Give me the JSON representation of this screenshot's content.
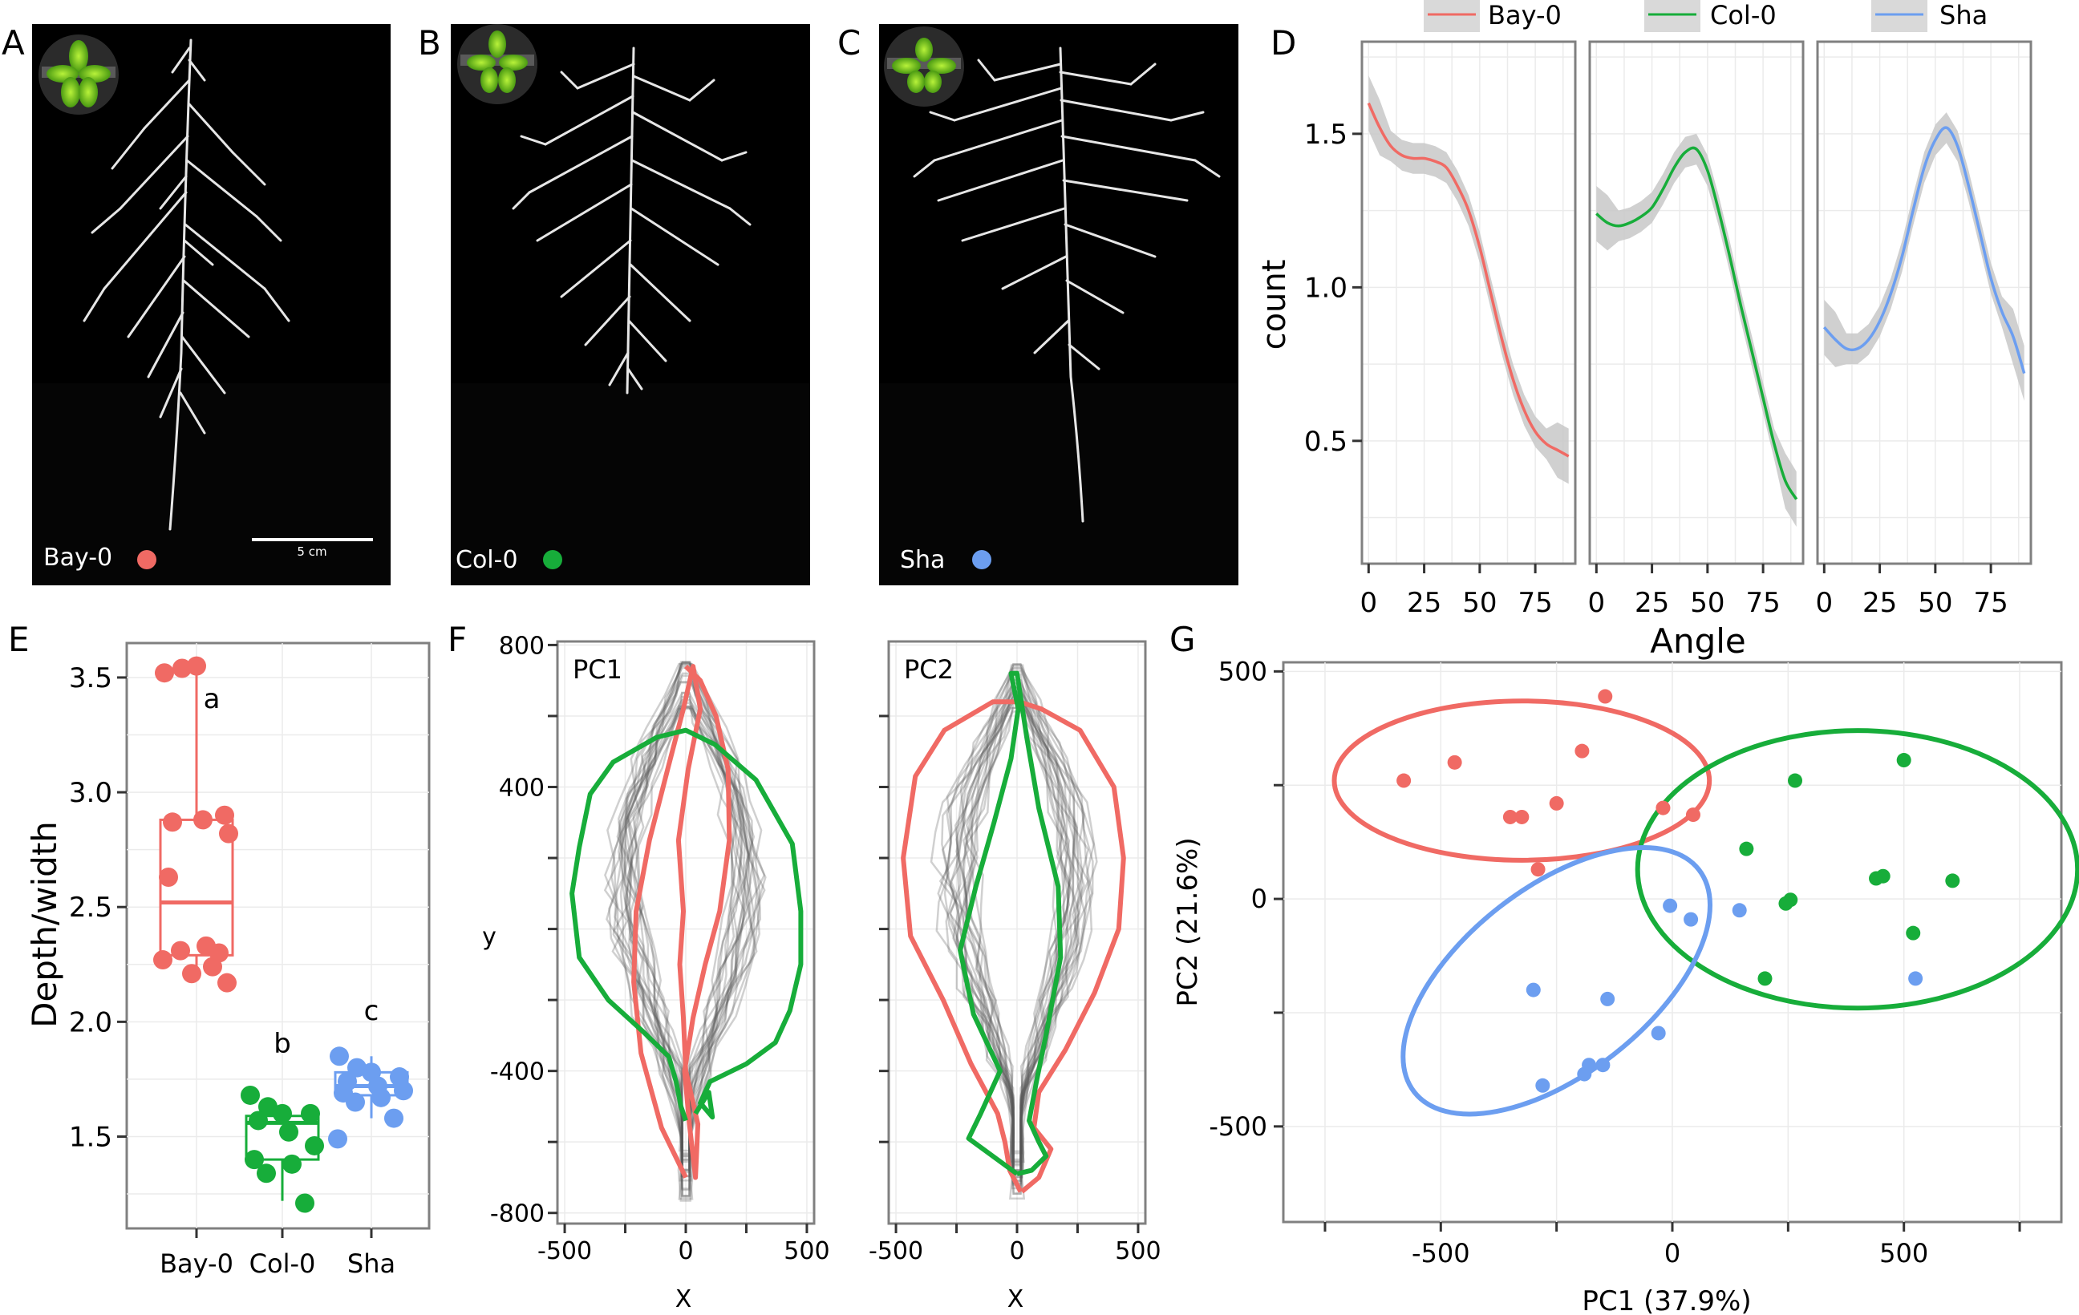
{
  "panel_labels": [
    "A",
    "B",
    "C",
    "D",
    "E",
    "F",
    "G"
  ],
  "colors": {
    "bay": "#f06a64",
    "col": "#17ad3a",
    "sha": "#6c9ef0",
    "ghost": "#555555",
    "frame": "#808080",
    "grid": "#ebebeb"
  },
  "photos": {
    "accession_labels": [
      "Bay-0",
      "Col-0",
      "Sha"
    ],
    "scale_bar": "5 cm"
  },
  "chart_data": [
    {
      "panel": "D",
      "type": "line",
      "facets": [
        "Bay-0",
        "Col-0",
        "Sha"
      ],
      "xlabel": "Angle",
      "ylabel": "count",
      "xlim": [
        -3,
        93
      ],
      "ylim": [
        0.1,
        1.8
      ],
      "xticks": [
        0,
        25,
        50,
        75
      ],
      "yticks": [
        0.5,
        1.0,
        1.5
      ],
      "ytick_labels": [
        "0.5",
        "1.0",
        "1.5"
      ],
      "legend_position": "top",
      "series": [
        {
          "name": "Bay-0",
          "x": [
            0,
            5,
            10,
            15,
            20,
            25,
            30,
            35,
            40,
            45,
            50,
            55,
            60,
            65,
            70,
            75,
            80,
            85,
            90
          ],
          "y": [
            1.6,
            1.52,
            1.46,
            1.43,
            1.42,
            1.42,
            1.41,
            1.39,
            1.33,
            1.25,
            1.13,
            0.98,
            0.83,
            0.7,
            0.6,
            0.53,
            0.49,
            0.47,
            0.45
          ]
        },
        {
          "name": "Col-0",
          "x": [
            0,
            5,
            10,
            15,
            20,
            25,
            30,
            35,
            40,
            45,
            50,
            55,
            60,
            65,
            70,
            75,
            80,
            85,
            90
          ],
          "y": [
            1.24,
            1.21,
            1.2,
            1.21,
            1.23,
            1.26,
            1.32,
            1.39,
            1.44,
            1.45,
            1.38,
            1.25,
            1.1,
            0.94,
            0.79,
            0.64,
            0.49,
            0.37,
            0.31
          ]
        },
        {
          "name": "Sha",
          "x": [
            0,
            5,
            10,
            15,
            20,
            25,
            30,
            35,
            40,
            45,
            50,
            55,
            60,
            65,
            70,
            75,
            80,
            85,
            90
          ],
          "y": [
            0.87,
            0.83,
            0.8,
            0.8,
            0.83,
            0.89,
            0.98,
            1.1,
            1.25,
            1.39,
            1.48,
            1.52,
            1.46,
            1.33,
            1.18,
            1.03,
            0.92,
            0.84,
            0.72
          ]
        }
      ]
    },
    {
      "panel": "E",
      "type": "box",
      "categories": [
        "Bay-0",
        "Col-0",
        "Sha"
      ],
      "ylabel": "Depth/width",
      "ylim": [
        1.1,
        3.65
      ],
      "yticks": [
        1.5,
        2.0,
        2.5,
        3.0,
        3.5
      ],
      "ytick_labels": [
        "1.5",
        "2.0",
        "2.5",
        "3.0",
        "3.5"
      ],
      "boxes": [
        {
          "q1": 2.29,
          "median": 2.52,
          "q3": 2.88,
          "whisker_low": 2.19,
          "whisker_high": 3.55,
          "points": [
            3.52,
            3.54,
            3.55,
            2.9,
            2.87,
            2.88,
            2.82,
            2.63,
            2.33,
            2.31,
            2.3,
            2.27,
            2.24,
            2.21,
            2.17
          ],
          "letter": "a"
        },
        {
          "q1": 1.4,
          "median": 1.56,
          "q3": 1.59,
          "whisker_low": 1.22,
          "whisker_high": 1.64,
          "points": [
            1.68,
            1.63,
            1.6,
            1.6,
            1.57,
            1.52,
            1.46,
            1.4,
            1.38,
            1.34,
            1.21
          ],
          "letter": "b"
        },
        {
          "q1": 1.68,
          "median": 1.72,
          "q3": 1.78,
          "whisker_low": 1.58,
          "whisker_high": 1.85,
          "points": [
            1.85,
            1.8,
            1.78,
            1.76,
            1.74,
            1.72,
            1.7,
            1.69,
            1.67,
            1.65,
            1.58,
            1.49
          ],
          "letter": "c"
        }
      ]
    },
    {
      "panel": "F",
      "type": "line",
      "subplots": [
        "PC1",
        "PC2"
      ],
      "xlabel": "X",
      "ylabel": "y",
      "xlim": [
        -530,
        530
      ],
      "ylim": [
        -830,
        810
      ],
      "xticks": [
        -500,
        0,
        500
      ],
      "xtick_labels": [
        "-500",
        "0",
        "500"
      ],
      "yticks": [
        -800,
        -400,
        0,
        400,
        800
      ],
      "ytick_labels": [
        "-800",
        "-400",
        "0",
        "400",
        "800"
      ],
      "series": [
        {
          "name": "PC1 red",
          "subplot": 0,
          "x": [
            0,
            -100,
            -185,
            -215,
            -205,
            -150,
            -75,
            -10,
            30,
            60,
            10,
            -30,
            -10,
            -25,
            -10,
            0,
            50,
            40,
            15,
            -5,
            30,
            80,
            140,
            180,
            175,
            125,
            60,
            0
          ],
          "y": [
            -700,
            -560,
            -350,
            -150,
            50,
            250,
            450,
            620,
            740,
            620,
            450,
            250,
            50,
            -100,
            -250,
            -400,
            -550,
            -700,
            -550,
            -400,
            -250,
            -100,
            50,
            250,
            450,
            600,
            700,
            740
          ]
        },
        {
          "name": "PC1 green",
          "subplot": 0,
          "x": [
            0,
            -20,
            -40,
            -70,
            -175,
            -320,
            -440,
            -470,
            -440,
            -395,
            -300,
            -120,
            0,
            120,
            290,
            440,
            475,
            475,
            430,
            370,
            250,
            100,
            60,
            110,
            95,
            40
          ],
          "y": [
            -540,
            -500,
            -430,
            -360,
            -290,
            -200,
            -80,
            100,
            230,
            380,
            470,
            540,
            560,
            520,
            420,
            240,
            50,
            -100,
            -230,
            -320,
            -380,
            -430,
            -490,
            -530,
            -460,
            -520
          ]
        },
        {
          "name": "PC2 red",
          "subplot": 1,
          "x": [
            15,
            -30,
            -50,
            -80,
            -190,
            -305,
            -440,
            -470,
            -420,
            -300,
            -100,
            10,
            100,
            260,
            400,
            440,
            420,
            320,
            200,
            90,
            70,
            140,
            90,
            20
          ],
          "y": [
            -740,
            -680,
            -600,
            -520,
            -380,
            -200,
            -20,
            200,
            430,
            560,
            640,
            640,
            620,
            560,
            400,
            200,
            0,
            -180,
            -340,
            -460,
            -560,
            -620,
            -700,
            -740
          ]
        },
        {
          "name": "PC2 green",
          "subplot": 1,
          "x": [
            0,
            -200,
            -150,
            -70,
            -180,
            -235,
            -170,
            -95,
            -25,
            5,
            -25,
            0,
            40,
            90,
            170,
            180,
            125,
            80,
            50,
            90,
            120,
            60,
            0
          ],
          "y": [
            -690,
            -590,
            -520,
            -400,
            -240,
            -60,
            120,
            300,
            480,
            620,
            720,
            720,
            540,
            340,
            120,
            -80,
            -280,
            -430,
            -540,
            -600,
            -640,
            -680,
            -690
          ]
        }
      ]
    },
    {
      "panel": "G",
      "type": "scatter",
      "xlabel": "PC1 (37.9%)",
      "ylabel": "PC2 (21.6%)",
      "xlim": [
        -840,
        840
      ],
      "ylim": [
        -710,
        520
      ],
      "xticks": [
        -500,
        0,
        500
      ],
      "xtick_labels": [
        "-500",
        "0",
        "500"
      ],
      "yticks": [
        -500,
        0,
        500
      ],
      "ytick_labels": [
        "-500",
        "0",
        "500"
      ],
      "series": [
        {
          "name": "Bay-0",
          "x": [
            -145,
            -470,
            -580,
            -195,
            -250,
            -350,
            -325,
            -290,
            -20,
            45
          ],
          "y": [
            445,
            300,
            260,
            325,
            210,
            180,
            180,
            65,
            200,
            185
          ],
          "ellipse": {
            "cx": -325,
            "cy": 260,
            "rx": 405,
            "ry": 175,
            "angle": 0
          }
        },
        {
          "name": "Col-0",
          "x": [
            500,
            265,
            160,
            455,
            440,
            605,
            520,
            255,
            245,
            200
          ],
          "y": [
            305,
            260,
            110,
            50,
            45,
            40,
            -75,
            -2,
            -10,
            -175
          ],
          "ellipse": {
            "cx": 400,
            "cy": 65,
            "rx": 475,
            "ry": 305,
            "angle": 0
          }
        },
        {
          "name": "Sha",
          "x": [
            -5,
            40,
            145,
            -300,
            -140,
            -30,
            -180,
            -190,
            -150,
            -280,
            525
          ],
          "y": [
            -15,
            -45,
            -25,
            -200,
            -220,
            -295,
            -365,
            -385,
            -365,
            -410,
            -175
          ],
          "ellipse": {
            "cx": -250,
            "cy": -180,
            "rx": 390,
            "ry": 205,
            "angle": -38
          }
        }
      ]
    }
  ]
}
